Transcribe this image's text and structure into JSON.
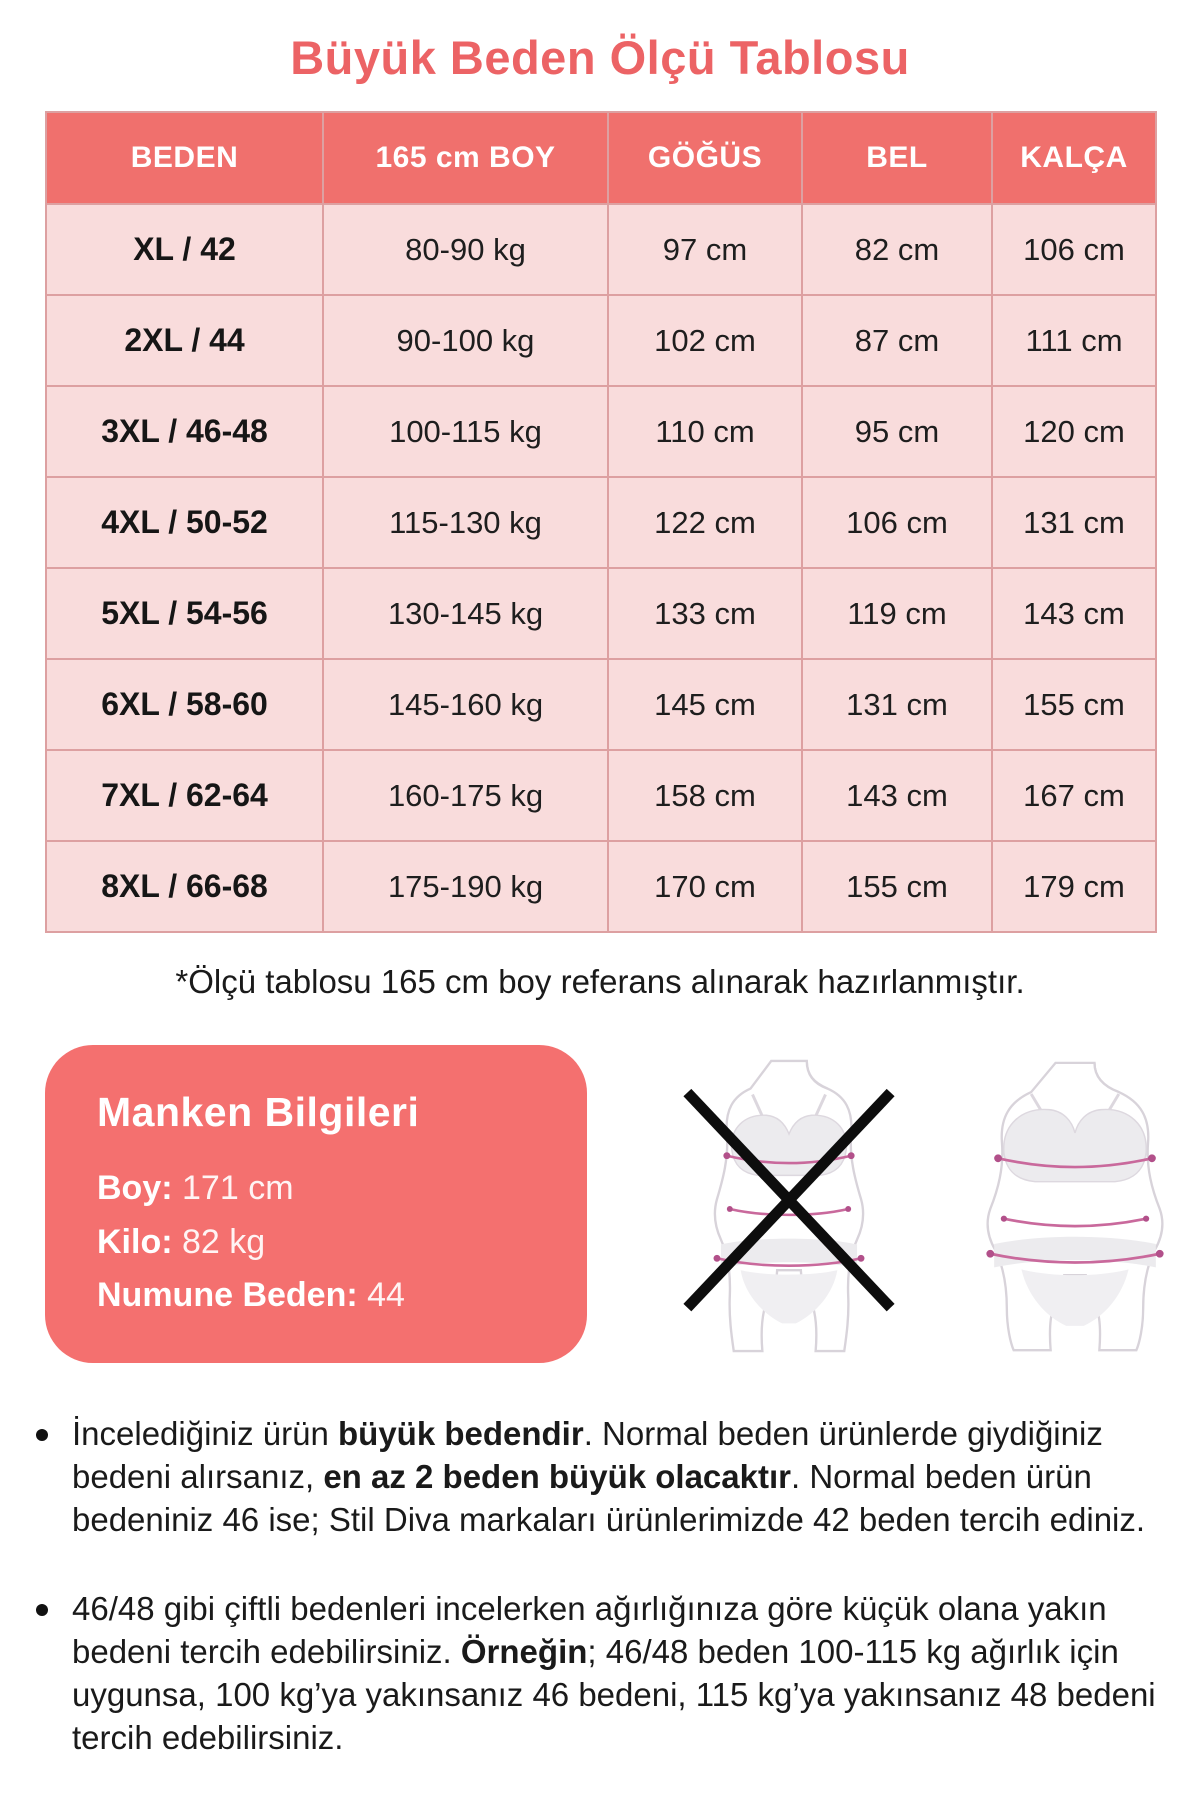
{
  "title": "Büyük Beden Ölçü Tablosu",
  "colors": {
    "accent_coral": "#f0706d",
    "title_coral": "#ec6365",
    "row_pink": "#f9dcdc",
    "grid_border": "#dda0a1",
    "measure_line_pink": "#c9699c",
    "text_black": "#1a1a1a"
  },
  "size_table": {
    "headers": [
      "BEDEN",
      "165 cm BOY",
      "GÖĞÜS",
      "BEL",
      "KALÇA"
    ],
    "rows": [
      {
        "beden": "XL / 42",
        "boy": "80-90 kg",
        "gogus": "97 cm",
        "bel": "82 cm",
        "kalca": "106 cm"
      },
      {
        "beden": "2XL / 44",
        "boy": "90-100 kg",
        "gogus": "102 cm",
        "bel": "87 cm",
        "kalca": "111 cm"
      },
      {
        "beden": "3XL / 46-48",
        "boy": "100-115 kg",
        "gogus": "110 cm",
        "bel": "95 cm",
        "kalca": "120 cm"
      },
      {
        "beden": "4XL / 50-52",
        "boy": "115-130 kg",
        "gogus": "122 cm",
        "bel": "106 cm",
        "kalca": "131 cm"
      },
      {
        "beden": "5XL / 54-56",
        "boy": "130-145 kg",
        "gogus": "133 cm",
        "bel": "119 cm",
        "kalca": "143 cm"
      },
      {
        "beden": "6XL / 58-60",
        "boy": "145-160 kg",
        "gogus": "145 cm",
        "bel": "131 cm",
        "kalca": "155 cm"
      },
      {
        "beden": "7XL / 62-64",
        "boy": "160-175 kg",
        "gogus": "158 cm",
        "bel": "143 cm",
        "kalca": "167 cm"
      },
      {
        "beden": "8XL / 66-68",
        "boy": "175-190 kg",
        "gogus": "170 cm",
        "bel": "155 cm",
        "kalca": "179 cm"
      }
    ]
  },
  "note": "*Ölçü tablosu 165 cm boy referans alınarak hazırlanmıştır.",
  "model_info": {
    "title": "Manken Bilgileri",
    "separator": ": ",
    "fields": [
      {
        "label": "Boy",
        "value": "171 cm"
      },
      {
        "label": "Kilo",
        "value": "82 kg"
      },
      {
        "label": "Numune Beden",
        "value": "44"
      }
    ]
  },
  "figures": {
    "wrong_label": "crossed-out-slim-figure",
    "correct_label": "plus-size-figure-with-measurement-lines"
  },
  "bullets": [
    {
      "segments": [
        {
          "t": "İncelediğiniz ürün ",
          "b": false
        },
        {
          "t": "büyük bedendir",
          "b": true
        },
        {
          "t": ". Normal beden ürünlerde giydiğiniz bedeni alırsanız, ",
          "b": false
        },
        {
          "t": "en az 2 beden büyük olacaktır",
          "b": true
        },
        {
          "t": ". Normal beden ürün bedeniniz 46 ise; Stil Diva markaları ürünlerimizde 42 beden tercih ediniz.",
          "b": false
        }
      ]
    },
    {
      "segments": [
        {
          "t": "46/48 gibi çiftli bedenleri incelerken ağırlığınıza göre küçük olana yakın bedeni tercih edebilirsiniz. ",
          "b": false
        },
        {
          "t": "Örneğin",
          "b": true
        },
        {
          "t": "; 46/48 beden 100-115 kg ağırlık için uygunsa, 100 kg’ya yakınsanız 46 bedeni, 115 kg’ya yakınsanız 48 bedeni tercih edebilirsiniz.",
          "b": false
        }
      ]
    }
  ]
}
